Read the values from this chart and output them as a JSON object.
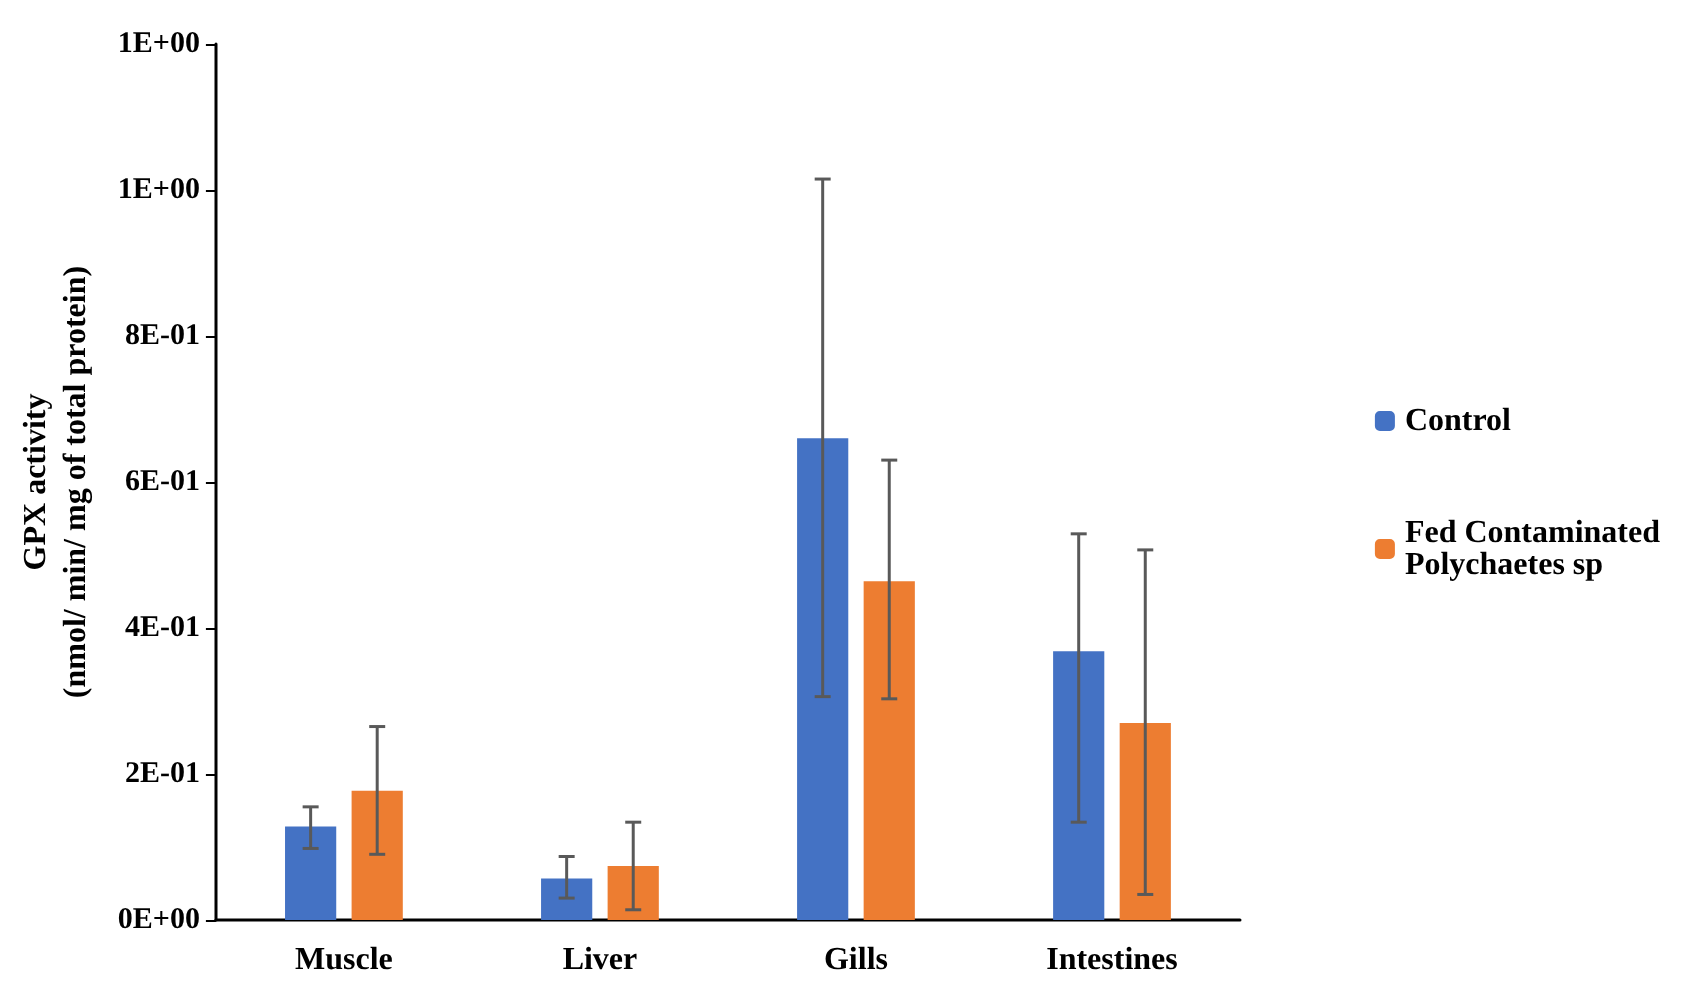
{
  "chart_data": {
    "type": "bar",
    "ylabel": "GPX activity\n(nmol/ min/ mg of total protein)",
    "categories": [
      "Muscle",
      "Liver",
      "Gills",
      "Intestines"
    ],
    "series": [
      {
        "name": "Control",
        "color": "#4472c4",
        "values": [
          0.128,
          0.057,
          0.66,
          0.368
        ],
        "errors": [
          [
            0.098,
            0.155
          ],
          [
            0.03,
            0.087
          ],
          [
            0.306,
            1.015
          ],
          [
            0.134,
            0.529
          ]
        ]
      },
      {
        "name": "Fed Contaminated\nPolychaetes sp",
        "color": "#ed7d31",
        "values": [
          0.177,
          0.074,
          0.464,
          0.27
        ],
        "errors": [
          [
            0.09,
            0.265
          ],
          [
            0.014,
            0.134
          ],
          [
            0.303,
            0.63
          ],
          [
            0.035,
            0.507
          ]
        ]
      }
    ],
    "ylim": [
      0,
      1.2
    ],
    "yticks": [
      {
        "value": 0,
        "label": "0E+00"
      },
      {
        "value": 0.2,
        "label": "2E-01"
      },
      {
        "value": 0.4,
        "label": "4E-01"
      },
      {
        "value": 0.6,
        "label": "6E-01"
      },
      {
        "value": 0.8,
        "label": "8E-01"
      },
      {
        "value": 1.0,
        "label": "1E+00"
      },
      {
        "value": 1.2,
        "label": "1E+00"
      }
    ],
    "grid": false,
    "legend": "right"
  }
}
